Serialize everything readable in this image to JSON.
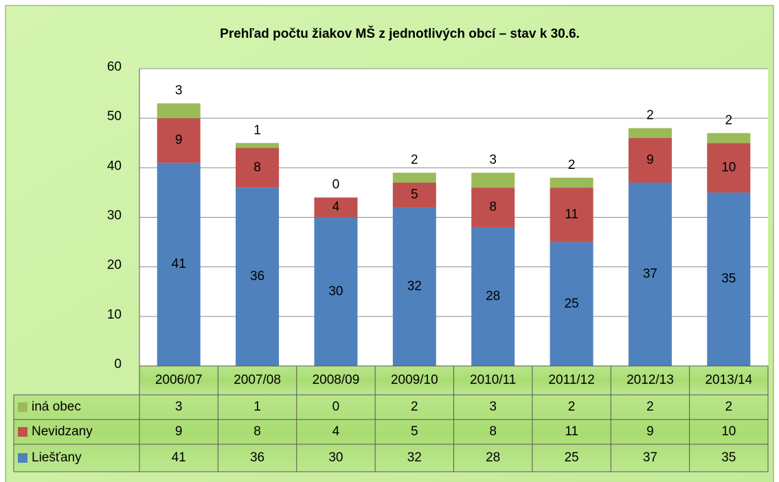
{
  "chart_data": {
    "type": "stacked_bar",
    "title": "Prehľad počtu žiakov MŠ z jednotlivých obcí – stav k 30.6.",
    "categories": [
      "2006/07",
      "2007/08",
      "2008/09",
      "2009/10",
      "2010/11",
      "2011/12",
      "2012/13",
      "2013/14"
    ],
    "series": [
      {
        "name": "Liešťany",
        "color": "#4f81bd",
        "values": [
          41,
          36,
          30,
          32,
          28,
          25,
          37,
          35
        ]
      },
      {
        "name": "Nevidzany",
        "color": "#c0504d",
        "values": [
          9,
          8,
          4,
          5,
          8,
          11,
          9,
          10
        ]
      },
      {
        "name": "iná obec",
        "color": "#9bbb59",
        "values": [
          3,
          1,
          0,
          2,
          3,
          2,
          2,
          2
        ]
      }
    ],
    "ylim": [
      0,
      60
    ],
    "yticks": [
      0,
      10,
      20,
      30,
      40,
      50,
      60
    ],
    "grid": true
  }
}
